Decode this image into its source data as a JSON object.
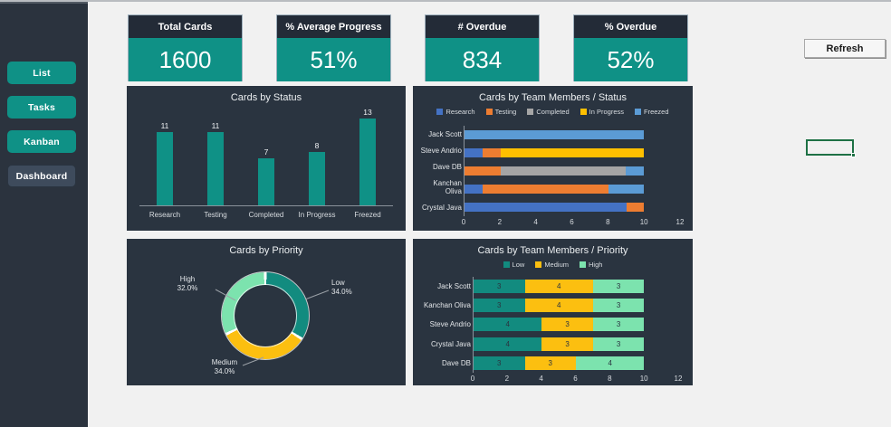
{
  "sidebar": {
    "items": [
      {
        "label": "List",
        "active": false
      },
      {
        "label": "Tasks",
        "active": false
      },
      {
        "label": "Kanban",
        "active": false
      },
      {
        "label": "Dashboard",
        "active": true
      }
    ]
  },
  "toolbar": {
    "refresh_label": "Refresh"
  },
  "kpis": [
    {
      "title": "Total Cards",
      "value": "1600"
    },
    {
      "title": "% Average Progress",
      "value": "51%"
    },
    {
      "title": "# Overdue",
      "value": "834"
    },
    {
      "title": "% Overdue",
      "value": "52%"
    }
  ],
  "colors": {
    "teal": "#0f9186",
    "panel": "#2a3440",
    "sidebar": "#2b333e",
    "kpi_header": "#232b37",
    "active_button": "#3e4b5c",
    "selection_green": "#1e7145",
    "status": {
      "Research": "#4472c4",
      "Testing": "#ed7d31",
      "Completed": "#a5a5a5",
      "In Progress": "#ffc000",
      "Freezed": "#5b9bd5"
    },
    "priority": {
      "Low": "#128b7f",
      "Medium": "#fcbf10",
      "High": "#7ce3ae"
    }
  },
  "chart_data": [
    {
      "type": "bar",
      "title": "Cards by Status",
      "categories": [
        "Research",
        "Testing",
        "Completed",
        "In Progress",
        "Freezed"
      ],
      "values": [
        11,
        11,
        7,
        8,
        13
      ],
      "bar_color": "#0f9186",
      "data_labels": true,
      "grid": false
    },
    {
      "type": "bar",
      "orientation": "horizontal-stacked",
      "title": "Cards by Team Members / Status",
      "categories": [
        "Jack Scott",
        "Steve Andrio",
        "Dave DB",
        "Kanchan Oliva",
        "Crystal Java"
      ],
      "series": [
        {
          "name": "Research",
          "color": "#4472c4",
          "values": [
            0,
            1,
            0,
            1,
            9
          ]
        },
        {
          "name": "Testing",
          "color": "#ed7d31",
          "values": [
            0,
            1,
            2,
            7,
            1
          ]
        },
        {
          "name": "Completed",
          "color": "#a5a5a5",
          "values": [
            0,
            0,
            7,
            0,
            0
          ]
        },
        {
          "name": "In Progress",
          "color": "#ffc000",
          "values": [
            0,
            8,
            0,
            0,
            0
          ]
        },
        {
          "name": "Freezed",
          "color": "#5b9bd5",
          "values": [
            10,
            0,
            1,
            2,
            0
          ]
        }
      ],
      "xlim": [
        0,
        12
      ],
      "ticks": [
        0,
        2,
        4,
        6,
        8,
        10,
        12
      ],
      "legend_position": "top",
      "data_labels": false
    },
    {
      "type": "pie",
      "subtype": "donut",
      "title": "Cards by Priority",
      "slices": [
        {
          "label": "Low",
          "pct": 34.0,
          "pct_text": "34.0%",
          "color": "#128b7f"
        },
        {
          "label": "Medium",
          "pct": 34.0,
          "pct_text": "34.0%",
          "color": "#fcbf10"
        },
        {
          "label": "High",
          "pct": 32.0,
          "pct_text": "32.0%",
          "color": "#7ce3ae"
        }
      ]
    },
    {
      "type": "bar",
      "orientation": "horizontal-stacked",
      "title": "Cards by Team Members / Priority",
      "categories": [
        "Jack Scott",
        "Kanchan Oliva",
        "Steve Andrio",
        "Crystal Java",
        "Dave DB"
      ],
      "series": [
        {
          "name": "Low",
          "color": "#128b7f",
          "values": [
            3,
            3,
            4,
            4,
            3
          ]
        },
        {
          "name": "Medium",
          "color": "#fcbf10",
          "values": [
            4,
            4,
            3,
            3,
            3
          ]
        },
        {
          "name": "High",
          "color": "#7ce3ae",
          "values": [
            3,
            3,
            3,
            3,
            4
          ]
        }
      ],
      "xlim": [
        0,
        12
      ],
      "ticks": [
        0,
        2,
        4,
        6,
        8,
        10,
        12
      ],
      "legend_position": "top",
      "data_labels": true
    }
  ]
}
